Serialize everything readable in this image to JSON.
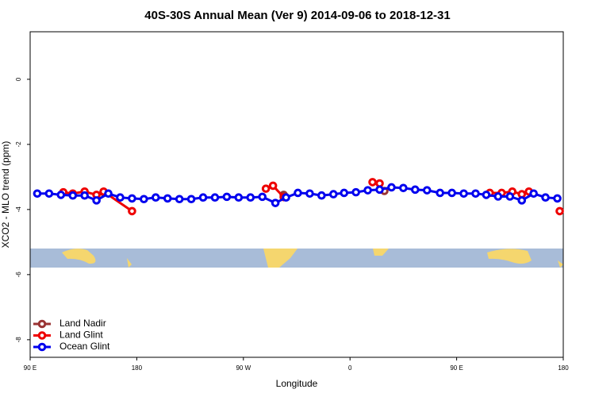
{
  "chart_data": {
    "type": "line",
    "title": "40S-30S Annual Mean (Ver 9)   2014-09-06 to 2018-12-31",
    "xlabel": "Longitude",
    "ylabel": "XCO2 - MLO trend (ppm)",
    "xlim": [
      90,
      540
    ],
    "ylim": [
      -8.54,
      1.46
    ],
    "xticks": [
      {
        "value": 90,
        "label": "90 E"
      },
      {
        "value": 180,
        "label": "180"
      },
      {
        "value": 270,
        "label": "90 W"
      },
      {
        "value": 360,
        "label": "0"
      },
      {
        "value": 450,
        "label": "90 E"
      },
      {
        "value": 540,
        "label": "180"
      }
    ],
    "yticks": [
      0,
      -2,
      -4,
      -6,
      -8
    ],
    "legend": "bottom-left",
    "series": [
      {
        "name": "Land Nadir",
        "color": "#993333",
        "x": [
          152,
          230,
          304,
          350,
          389
        ],
        "values": [
          -3.47,
          null,
          -3.55,
          null,
          -3.43
        ]
      },
      {
        "name": "Land Glint",
        "color": "#ee0000",
        "x": [
          118,
          126,
          136,
          146,
          152,
          176,
          230,
          289,
          295,
          304,
          340,
          379,
          385,
          430,
          478,
          488,
          497,
          505,
          511,
          525,
          537
        ],
        "values": [
          -3.47,
          -3.51,
          -3.45,
          -3.55,
          -3.45,
          -4.05,
          null,
          -3.36,
          -3.27,
          -3.62,
          null,
          -3.16,
          -3.2,
          null,
          -3.49,
          -3.49,
          -3.45,
          -3.53,
          -3.45,
          null,
          -4.05
        ]
      },
      {
        "name": "Ocean Glint",
        "color": "#0000ee",
        "x": [
          96,
          106,
          116,
          126,
          136,
          146,
          156,
          166,
          176,
          186,
          196,
          206,
          216,
          226,
          236,
          246,
          256,
          266,
          276,
          286,
          297,
          306,
          316,
          326,
          336,
          346,
          355,
          365,
          375,
          385,
          395,
          405,
          415,
          425,
          436,
          446,
          456,
          466,
          475,
          485,
          495,
          505,
          515,
          525,
          535
        ],
        "values": [
          -3.51,
          -3.51,
          -3.55,
          -3.57,
          -3.57,
          -3.72,
          -3.51,
          -3.63,
          -3.66,
          -3.68,
          -3.63,
          -3.66,
          -3.68,
          -3.68,
          -3.63,
          -3.63,
          -3.61,
          -3.63,
          -3.63,
          -3.61,
          -3.8,
          -3.63,
          -3.49,
          -3.51,
          -3.57,
          -3.53,
          -3.49,
          -3.47,
          -3.41,
          -3.39,
          -3.32,
          -3.34,
          -3.39,
          -3.41,
          -3.49,
          -3.49,
          -3.51,
          -3.51,
          -3.55,
          -3.6,
          -3.6,
          -3.72,
          -3.51,
          -3.63,
          -3.66
        ]
      }
    ]
  }
}
